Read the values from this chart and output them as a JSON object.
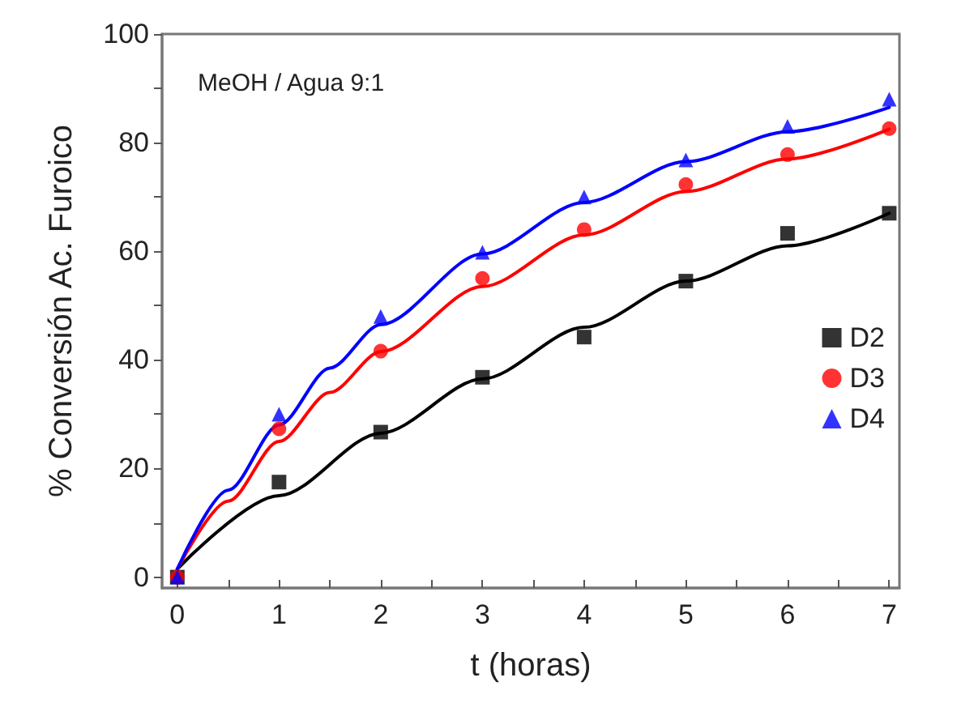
{
  "chart_data": {
    "type": "scatter",
    "xlabel": "t (horas)",
    "ylabel": "% Conversión Ac. Furoico",
    "annotations": [
      "MeOH / Agua 9:1"
    ],
    "x": [
      0,
      1,
      2,
      3,
      4,
      5,
      6,
      7
    ],
    "series": [
      {
        "name": "D2",
        "color": "#000000",
        "marker": "square",
        "values": [
          0,
          17.5,
          26.7,
          36.8,
          44.2,
          54.5,
          63.3,
          67
        ]
      },
      {
        "name": "D3",
        "color": "#ff0000",
        "marker": "circle",
        "values": [
          0,
          27.3,
          41.6,
          55,
          64,
          72.3,
          77.8,
          82.6
        ]
      },
      {
        "name": "D4",
        "color": "#0000ff",
        "marker": "triangle",
        "values": [
          0,
          30,
          48,
          59.8,
          70,
          76.8,
          83,
          88
        ]
      },
      {
        "type": "line",
        "color": "#000000",
        "marker": "none",
        "line_style": "solid",
        "x": [
          0,
          1,
          2,
          3,
          4,
          5,
          6,
          7
        ],
        "values": [
          1.5,
          15,
          26.5,
          36.5,
          46,
          54.5,
          61,
          67
        ]
      },
      {
        "type": "line",
        "color": "#ff0000",
        "marker": "none",
        "line_style": "solid",
        "x": [
          0,
          0.5,
          1,
          1.5,
          2,
          3,
          4,
          5,
          6,
          7
        ],
        "values": [
          1.5,
          14,
          25,
          34,
          41.5,
          53.5,
          63,
          71,
          77,
          82.5
        ]
      },
      {
        "type": "line",
        "color": "#0000ff",
        "marker": "none",
        "line_style": "solid",
        "x": [
          0,
          0.5,
          1,
          1.5,
          2,
          3,
          4,
          5,
          6,
          7
        ],
        "values": [
          1.5,
          16,
          28,
          38.5,
          46.5,
          59.5,
          69,
          76.5,
          82,
          86.5
        ]
      }
    ],
    "xlim": [
      -0.15,
      7.1
    ],
    "xticks": [
      0,
      {
        "value": 0.5,
        "label": null
      },
      1,
      {
        "value": 1.5,
        "label": null
      },
      2,
      {
        "value": 2.5,
        "label": null
      },
      3,
      {
        "value": 3.5,
        "label": null
      },
      4,
      {
        "value": 4.5,
        "label": null
      },
      5,
      {
        "value": 5.5,
        "label": null
      },
      6,
      {
        "value": 6.5,
        "label": null
      },
      7
    ],
    "ylim": [
      -2,
      100
    ],
    "yticks": [
      0,
      {
        "value": 10,
        "label": null
      },
      20,
      {
        "value": 30,
        "label": null
      },
      40,
      {
        "value": 50,
        "label": null
      },
      60,
      {
        "value": 70,
        "label": null
      },
      80,
      {
        "value": 90,
        "label": null
      },
      100
    ],
    "grid": false,
    "legend": "right"
  }
}
